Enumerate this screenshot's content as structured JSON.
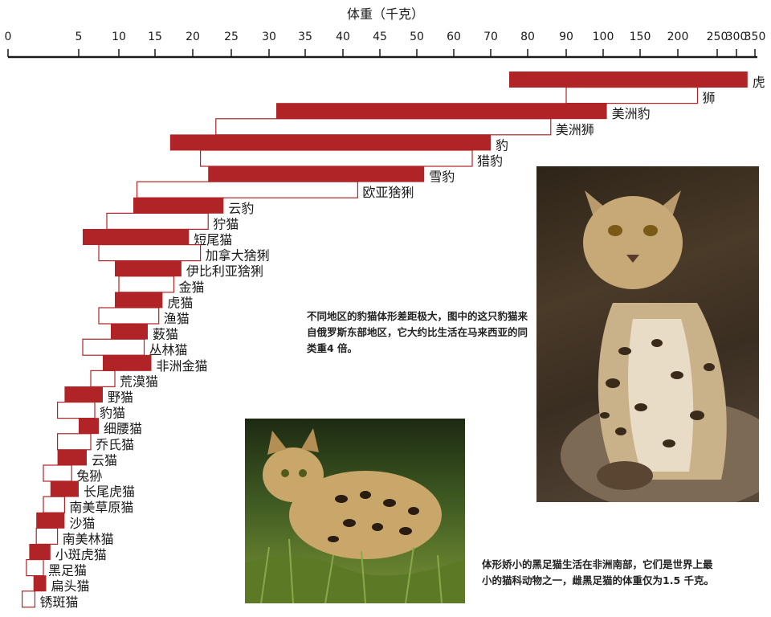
{
  "chart_data": {
    "type": "bar",
    "orientation": "horizontal-range",
    "xlabel": "体重（千克）",
    "x_ticks": [
      "0",
      "5",
      "10",
      "15",
      "20",
      "25",
      "30",
      "35",
      "40",
      "45",
      "50",
      "60",
      "70",
      "80",
      "90",
      "100",
      "150",
      "200",
      "250",
      "300",
      "350"
    ],
    "x_tick_values": [
      0,
      5,
      10,
      15,
      20,
      25,
      30,
      35,
      40,
      45,
      50,
      60,
      70,
      80,
      90,
      100,
      150,
      200,
      250,
      300,
      350
    ],
    "bar_style": "alternating red-filled and outlined ranges",
    "colors": {
      "filled": "#b02326",
      "outline": "#b02326",
      "text": "#1a1a1a"
    },
    "series": [
      {
        "label": "虎",
        "min": 75,
        "max": 330
      },
      {
        "label": "狮",
        "min": 90,
        "max": 225
      },
      {
        "label": "美洲豹",
        "min": 31,
        "max": 105
      },
      {
        "label": "美洲狮",
        "min": 23,
        "max": 86
      },
      {
        "label": "豹",
        "min": 17,
        "max": 70
      },
      {
        "label": "猎豹",
        "min": 21,
        "max": 65
      },
      {
        "label": "雪豹",
        "min": 22,
        "max": 52
      },
      {
        "label": "欧亚猞猁",
        "min": 12.5,
        "max": 42
      },
      {
        "label": "云豹",
        "min": 12,
        "max": 24
      },
      {
        "label": "狞猫",
        "min": 8.5,
        "max": 22
      },
      {
        "label": "短尾猫",
        "min": 5.5,
        "max": 19.5
      },
      {
        "label": "加拿大猞猁",
        "min": 7.5,
        "max": 21
      },
      {
        "label": "伊比利亚猞猁",
        "min": 9.5,
        "max": 18.5
      },
      {
        "label": "金猫",
        "min": 10,
        "max": 17.5
      },
      {
        "label": "虎猫",
        "min": 9.5,
        "max": 16
      },
      {
        "label": "渔猫",
        "min": 7.5,
        "max": 15.5
      },
      {
        "label": "薮猫",
        "min": 9,
        "max": 14
      },
      {
        "label": "丛林猫",
        "min": 5.5,
        "max": 13.5
      },
      {
        "label": "非洲金猫",
        "min": 8,
        "max": 14.5
      },
      {
        "label": "荒漠猫",
        "min": 6.5,
        "max": 9.5
      },
      {
        "label": "野猫",
        "min": 4,
        "max": 8
      },
      {
        "label": "豹猫",
        "min": 3.5,
        "max": 7
      },
      {
        "label": "细腰猫",
        "min": 5,
        "max": 7.5
      },
      {
        "label": "乔氏猫",
        "min": 3.5,
        "max": 6.5
      },
      {
        "label": "云猫",
        "min": 3.5,
        "max": 6
      },
      {
        "label": "兔狲",
        "min": 2.5,
        "max": 4.5
      },
      {
        "label": "长尾虎猫",
        "min": 3,
        "max": 5
      },
      {
        "label": "南美草原猫",
        "min": 2.5,
        "max": 4
      },
      {
        "label": "沙猫",
        "min": 2,
        "max": 4
      },
      {
        "label": "南美林猫",
        "min": 2,
        "max": 3.5
      },
      {
        "label": "小斑虎猫",
        "min": 1.5,
        "max": 3
      },
      {
        "label": "黑足猫",
        "min": 1.3,
        "max": 2.5
      },
      {
        "label": "扁头猫",
        "min": 1.8,
        "max": 2.7
      },
      {
        "label": "锈斑猫",
        "min": 1,
        "max": 1.9
      }
    ]
  },
  "captions": {
    "leopard_cat": "不同地区的豹猫体形差距极大，图中的这只豹猫来自俄罗斯东部地区，它大约比生活在马来西亚的同类重4 倍。",
    "black_footed_cat": "体形娇小的黑足猫生活在非洲南部，它们是世界上最小的猫科动物之一，雌黑足猫的体重仅为1.5 千克。"
  }
}
